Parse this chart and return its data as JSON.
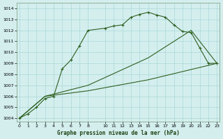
{
  "title": "Graphe pression niveau de la mer (hPa)",
  "bg_color": "#d4eeee",
  "grid_color": "#aad8d8",
  "line_color": "#2d6020",
  "xlim": [
    -0.3,
    23.3
  ],
  "ylim": [
    1003.7,
    1014.5
  ],
  "ytick_vals": [
    1004,
    1005,
    1006,
    1007,
    1008,
    1009,
    1010,
    1011,
    1012,
    1013,
    1014
  ],
  "xtick_vals": [
    0,
    1,
    2,
    3,
    4,
    5,
    6,
    7,
    8,
    10,
    11,
    12,
    13,
    14,
    15,
    16,
    17,
    18,
    19,
    20,
    21,
    22,
    23
  ],
  "line1_x": [
    0,
    1,
    2,
    3,
    4,
    5,
    6,
    7,
    8,
    10,
    11,
    12,
    13,
    14,
    15,
    16,
    17,
    18,
    19,
    20,
    21,
    22,
    23
  ],
  "line1_y": [
    1004.0,
    1004.4,
    1005.0,
    1005.8,
    1006.0,
    1008.5,
    1009.3,
    1010.6,
    1012.0,
    1012.2,
    1012.4,
    1012.5,
    1013.2,
    1013.45,
    1013.65,
    1013.4,
    1013.2,
    1012.5,
    1011.9,
    1011.8,
    1010.4,
    1009.0,
    1009.0
  ],
  "line2_x": [
    0,
    3,
    8,
    15,
    23
  ],
  "line2_y": [
    1004.0,
    1006.0,
    1006.5,
    1007.5,
    1009.0
  ],
  "line3_x": [
    0,
    3,
    8,
    15,
    20,
    23
  ],
  "line3_y": [
    1004.0,
    1006.0,
    1007.0,
    1009.5,
    1012.0,
    1009.0
  ]
}
